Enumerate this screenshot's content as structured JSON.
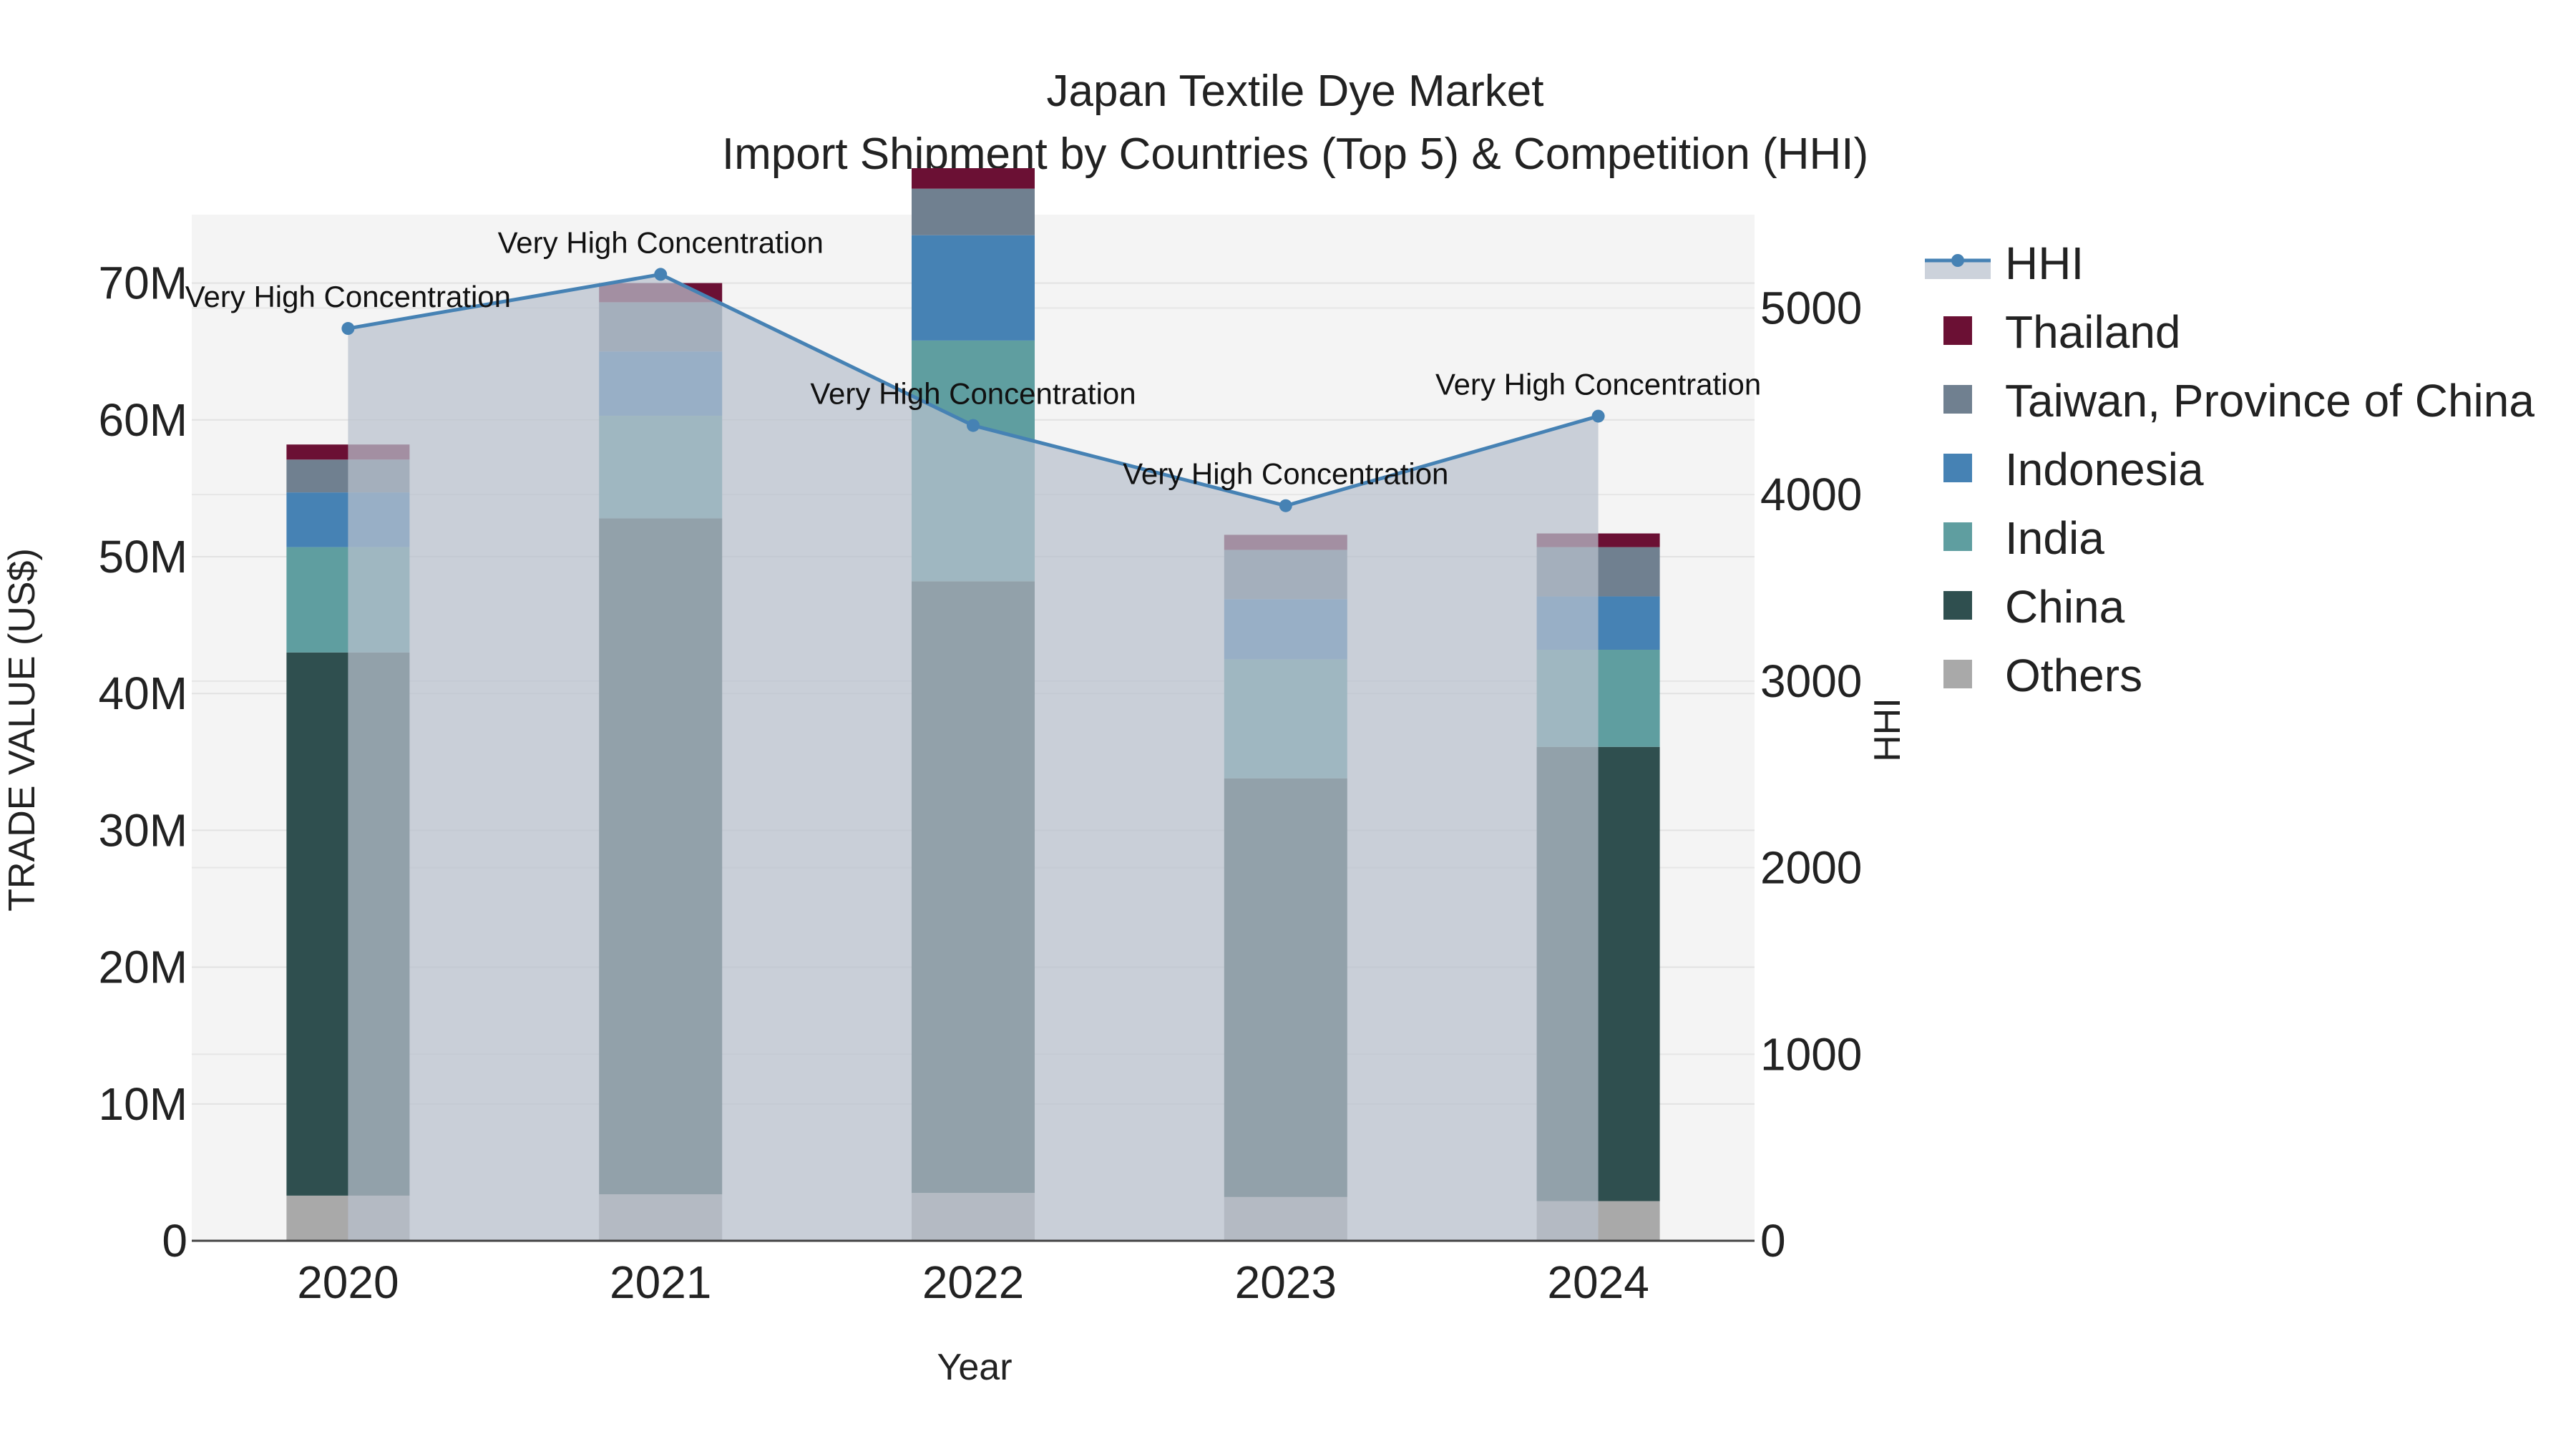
{
  "chart_data": {
    "type": "bar",
    "title": "Japan Textile Dye Market",
    "subtitle": "Import Shipment by Countries (Top 5) & Competition (HHI)",
    "xlabel": "Year",
    "ylabel": "TRADE VALUE (US$)",
    "y2label": "HHI",
    "categories": [
      "2020",
      "2021",
      "2022",
      "2023",
      "2024"
    ],
    "ylim": [
      0,
      75000000
    ],
    "y2lim": [
      0,
      5500
    ],
    "yticks": [
      0,
      10000000,
      20000000,
      30000000,
      40000000,
      50000000,
      60000000,
      70000000
    ],
    "ytick_labels": [
      "0",
      "10M",
      "20M",
      "30M",
      "40M",
      "50M",
      "60M",
      "70M"
    ],
    "y2ticks": [
      0,
      1000,
      2000,
      3000,
      4000,
      5000
    ],
    "y2tick_labels": [
      "0",
      "1000",
      "2000",
      "3000",
      "4000",
      "5000"
    ],
    "grid": true,
    "legend_position": "right",
    "series": [
      {
        "name": "Others",
        "color": "#a9a9a9",
        "values": [
          3300000,
          3400000,
          3500000,
          3200000,
          2900000
        ]
      },
      {
        "name": "China",
        "color": "#2f4f4f",
        "values": [
          39700000,
          49400000,
          44700000,
          30600000,
          33200000
        ]
      },
      {
        "name": "India",
        "color": "#5f9ea0",
        "values": [
          7700000,
          7500000,
          17600000,
          8700000,
          7100000
        ]
      },
      {
        "name": "Indonesia",
        "color": "#4682b4",
        "values": [
          4000000,
          4700000,
          7700000,
          4400000,
          3900000
        ]
      },
      {
        "name": "Taiwan, Province of China",
        "color": "#708090",
        "values": [
          2400000,
          3600000,
          3400000,
          3600000,
          3600000
        ]
      },
      {
        "name": "Thailand",
        "color": "#6b1034",
        "values": [
          1100000,
          1400000,
          1500000,
          1100000,
          1000000
        ]
      }
    ],
    "hhi": {
      "name": "HHI",
      "color": "#4682b4",
      "values": [
        4890,
        5180,
        4370,
        3940,
        4420
      ],
      "annotations": [
        "Very High Concentration",
        "Very High Concentration",
        "Very High Concentration",
        "Very High Concentration",
        "Very High Concentration"
      ]
    },
    "legend": [
      "HHI",
      "Thailand",
      "Taiwan, Province of China",
      "Indonesia",
      "India",
      "China",
      "Others"
    ]
  }
}
